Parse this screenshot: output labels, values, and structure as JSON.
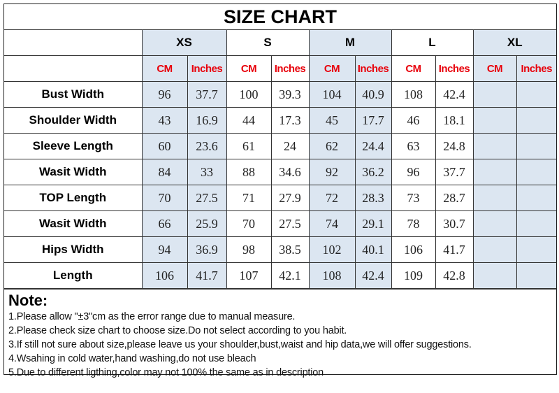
{
  "title": "SIZE CHART",
  "shade_color": "#dce6f1",
  "unit_color": "#e8000b",
  "sizes": [
    "XS",
    "S",
    "M",
    "L",
    "XL"
  ],
  "units": [
    "CM",
    "Inches"
  ],
  "rows": [
    {
      "label": "Bust Width",
      "values": [
        "96",
        "37.7",
        "100",
        "39.3",
        "104",
        "40.9",
        "108",
        "42.4",
        "",
        ""
      ]
    },
    {
      "label": "Shoulder Width",
      "values": [
        "43",
        "16.9",
        "44",
        "17.3",
        "45",
        "17.7",
        "46",
        "18.1",
        "",
        ""
      ]
    },
    {
      "label": "Sleeve Length",
      "values": [
        "60",
        "23.6",
        "61",
        "24",
        "62",
        "24.4",
        "63",
        "24.8",
        "",
        ""
      ]
    },
    {
      "label": "Wasit Width",
      "values": [
        "84",
        "33",
        "88",
        "34.6",
        "92",
        "36.2",
        "96",
        "37.7",
        "",
        ""
      ]
    },
    {
      "label": "TOP Length",
      "values": [
        "70",
        "27.5",
        "71",
        "27.9",
        "72",
        "28.3",
        "73",
        "28.7",
        "",
        ""
      ]
    },
    {
      "label": "Wasit Width",
      "values": [
        "66",
        "25.9",
        "70",
        "27.5",
        "74",
        "29.1",
        "78",
        "30.7",
        "",
        ""
      ]
    },
    {
      "label": "Hips Width",
      "values": [
        "94",
        "36.9",
        "98",
        "38.5",
        "102",
        "40.1",
        "106",
        "41.7",
        "",
        ""
      ]
    },
    {
      "label": "Length",
      "values": [
        "106",
        "41.7",
        "107",
        "42.1",
        "108",
        "42.4",
        "109",
        "42.8",
        "",
        ""
      ]
    }
  ],
  "notes": {
    "heading": "Note:",
    "lines": [
      "1.Please allow \"±3\"cm as the error range due to manual measure.",
      "2.Please check size chart to choose size.Do not select according to you habit.",
      "3.If still not sure about size,please leave us your shoulder,bust,waist and hip data,we will offer suggestions.",
      "4.Wsahing in cold water,hand washing,do not use bleach",
      "5.Due to different ligthing,color may not 100% the same as in description"
    ]
  }
}
